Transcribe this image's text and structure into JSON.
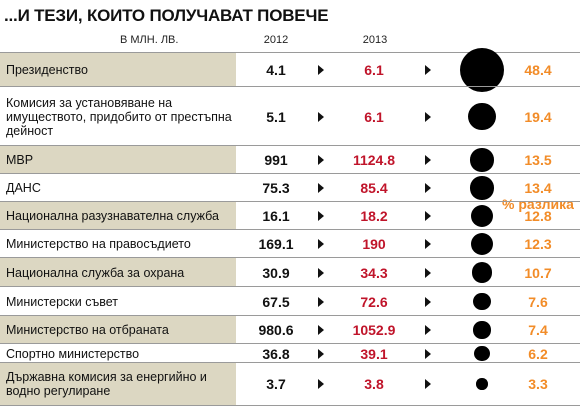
{
  "title": "...И ТЕЗИ, КОИТО ПОЛУЧАВАТ ПОВЕЧЕ",
  "headers": {
    "unit": "В МЛН. ЛВ.",
    "year1": "2012",
    "year2": "2013",
    "pct": "% разлика"
  },
  "colors": {
    "shade": "#dcd7c2",
    "value_2013": "#c0142a",
    "pct": "#f28c28"
  },
  "chart_data": {
    "type": "table",
    "title": "...И ТЕЗИ, КОИТО ПОЛУЧАВАТ ПОВЕЧЕ",
    "unit": "В МЛН. ЛВ.",
    "columns": [
      "2012",
      "2013",
      "% разлика"
    ],
    "rows": [
      {
        "name": "Президенство",
        "v2012": "4.1",
        "v2013": "6.1",
        "pct": "48.4",
        "pct_value": 48.4
      },
      {
        "name": "Комисия за установяване на имуществото, придобито от престъпна дейност",
        "v2012": "5.1",
        "v2013": "6.1",
        "pct": "19.4",
        "pct_value": 19.4
      },
      {
        "name": "МВР",
        "v2012": "991",
        "v2013": "1124.8",
        "pct": "13.5",
        "pct_value": 13.5
      },
      {
        "name": "ДАНС",
        "v2012": "75.3",
        "v2013": "85.4",
        "pct": "13.4",
        "pct_value": 13.4
      },
      {
        "name": "Национална разузнавателна служба",
        "v2012": "16.1",
        "v2013": "18.2",
        "pct": "12.8",
        "pct_value": 12.8
      },
      {
        "name": "Министерство на правосъдието",
        "v2012": "169.1",
        "v2013": "190",
        "pct": "12.3",
        "pct_value": 12.3
      },
      {
        "name": "Национална служба за охрана",
        "v2012": "30.9",
        "v2013": "34.3",
        "pct": "10.7",
        "pct_value": 10.7
      },
      {
        "name": "Министерски съвет",
        "v2012": "67.5",
        "v2013": "72.6",
        "pct": "7.6",
        "pct_value": 7.6
      },
      {
        "name": "Министерство на отбраната",
        "v2012": "980.6",
        "v2013": "1052.9",
        "pct": "7.4",
        "pct_value": 7.4
      },
      {
        "name": "Спортно министерство",
        "v2012": "36.8",
        "v2013": "39.1",
        "pct": "6.2",
        "pct_value": 6.2
      },
      {
        "name": "Държавна комисия за енергийно и водно регулиране",
        "v2012": "3.7",
        "v2013": "3.8",
        "pct": "3.3",
        "pct_value": 3.3
      }
    ]
  }
}
